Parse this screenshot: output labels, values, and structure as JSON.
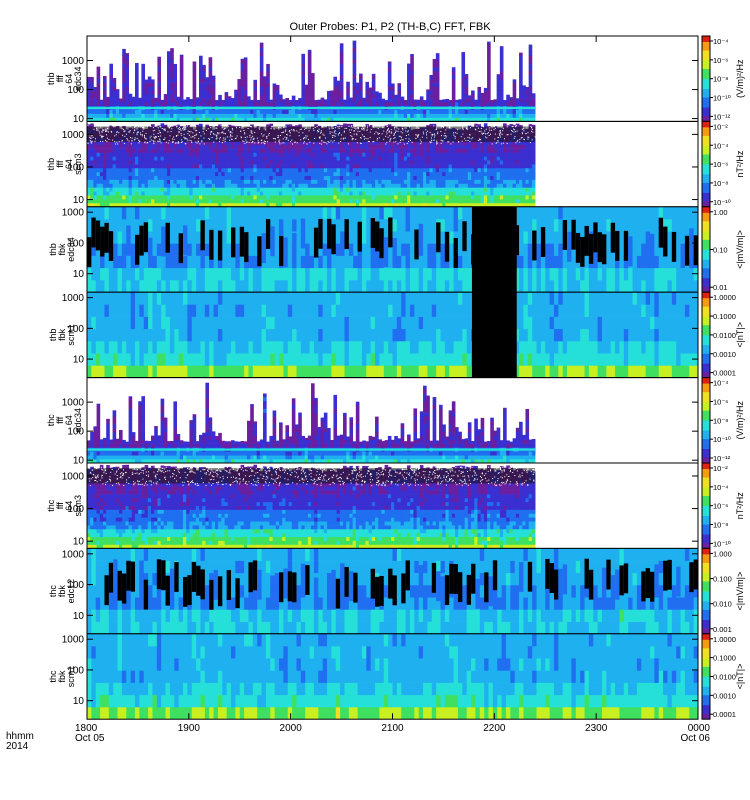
{
  "chart_data": {
    "type": "heatmap",
    "title": "Outer Probes: P1, P2 (TH-B,C) FFT, FBK",
    "time_axis": {
      "label_line1": "hhmm",
      "label_line2": "2014",
      "ticks": [
        {
          "value": "1800",
          "sub": "Oct 05"
        },
        {
          "value": "1900",
          "sub": ""
        },
        {
          "value": "2000",
          "sub": ""
        },
        {
          "value": "2100",
          "sub": ""
        },
        {
          "value": "2200",
          "sub": ""
        },
        {
          "value": "2300",
          "sub": ""
        },
        {
          "value": "0000",
          "sub": "Oct 06"
        }
      ],
      "range_hours": [
        18,
        24
      ]
    },
    "panels": [
      {
        "probe": "thb",
        "kind": "fff",
        "chan": "e",
        "label": [
          "thb",
          "fff",
          "64",
          "edc34"
        ],
        "freq_range": [
          8,
          7000
        ],
        "yticks": [
          "10",
          "100",
          "1000"
        ],
        "data_end_hour": 22.4,
        "cb_ticks": [
          "10⁻⁴",
          "10⁻⁶",
          "10⁻⁸",
          "10⁻¹⁰",
          "10⁻¹²"
        ],
        "cb_unit": "(V/m)²/Hz",
        "gap": null
      },
      {
        "probe": "thb",
        "kind": "fff",
        "chan": "b",
        "label": [
          "thb",
          "fff",
          "64",
          "scm3"
        ],
        "freq_range": [
          6,
          2500
        ],
        "yticks": [
          "10",
          "100",
          "1000"
        ],
        "data_end_hour": 22.4,
        "cb_ticks": [
          "10⁻²",
          "10⁻⁴",
          "10⁻⁶",
          "10⁻⁸",
          "10⁻¹⁰"
        ],
        "cb_unit": "nT²/Hz",
        "gap": null
      },
      {
        "probe": "thb",
        "kind": "fbk",
        "chan": "e",
        "label": [
          "thb",
          "fbk",
          "edc34"
        ],
        "freq_range": [
          2.5,
          1500
        ],
        "yticks": [
          "10",
          "100",
          "1000"
        ],
        "data_end_hour": 24,
        "cb_ticks": [
          "1.00",
          "0.10",
          "0.01"
        ],
        "cb_unit": "<|mV/m|>",
        "gap": [
          21.78,
          22.22
        ]
      },
      {
        "probe": "thb",
        "kind": "fbk",
        "chan": "b",
        "label": [
          "thb",
          "fbk",
          "scm1"
        ],
        "freq_range": [
          2.5,
          1500
        ],
        "yticks": [
          "10",
          "100",
          "1000"
        ],
        "data_end_hour": 24,
        "cb_ticks": [
          "1.0000",
          "0.1000",
          "0.0100",
          "0.0010",
          "0.0001"
        ],
        "cb_unit": "<|nT|>",
        "gap": [
          21.78,
          22.22
        ]
      },
      {
        "probe": "thc",
        "kind": "fff",
        "chan": "e",
        "label": [
          "thc",
          "fff",
          "64",
          "edc34"
        ],
        "freq_range": [
          8,
          7000
        ],
        "yticks": [
          "10",
          "100",
          "1000"
        ],
        "data_end_hour": 22.4,
        "cb_ticks": [
          "10⁻⁴",
          "10⁻⁶",
          "10⁻⁸",
          "10⁻¹⁰",
          "10⁻¹²"
        ],
        "cb_unit": "(V/m)²/Hz",
        "gap": null
      },
      {
        "probe": "thc",
        "kind": "fff",
        "chan": "b",
        "label": [
          "thc",
          "fff",
          "64",
          "scm3"
        ],
        "freq_range": [
          6,
          2500
        ],
        "yticks": [
          "10",
          "100",
          "1000"
        ],
        "data_end_hour": 22.4,
        "cb_ticks": [
          "10⁻²",
          "10⁻⁴",
          "10⁻⁶",
          "10⁻⁸",
          "10⁻¹⁰"
        ],
        "cb_unit": "nT²/Hz",
        "gap": null
      },
      {
        "probe": "thc",
        "kind": "fbk",
        "chan": "e",
        "label": [
          "thc",
          "fbk",
          "edc12"
        ],
        "freq_range": [
          2.5,
          1500
        ],
        "yticks": [
          "10",
          "100",
          "1000"
        ],
        "data_end_hour": 24,
        "cb_ticks": [
          "1.000",
          "0.100",
          "0.010",
          "0.001"
        ],
        "cb_unit": "<|mV/m|>",
        "gap": null
      },
      {
        "probe": "thc",
        "kind": "fbk",
        "chan": "b",
        "label": [
          "thc",
          "fbk",
          "scm1"
        ],
        "freq_range": [
          2.5,
          1500
        ],
        "yticks": [
          "10",
          "100",
          "1000"
        ],
        "data_end_hour": 24,
        "cb_ticks": [
          "1.0000",
          "0.1000",
          "0.0100",
          "0.0010",
          "0.0001"
        ],
        "cb_unit": "<|nT|>",
        "gap": null
      }
    ],
    "colormap": [
      "#ffffff",
      "#6a1fa0",
      "#3a2fd0",
      "#1f6ff0",
      "#1fb0f0",
      "#25e0d8",
      "#3fe060",
      "#c8f020",
      "#f0e020",
      "#f89a10",
      "#e02010"
    ]
  }
}
